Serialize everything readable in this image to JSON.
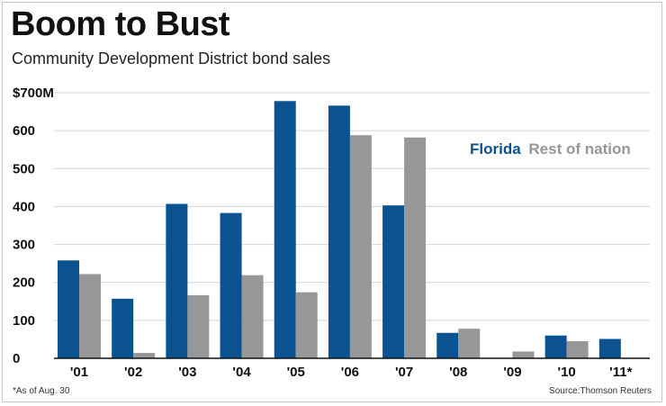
{
  "header": {
    "title": "Boom to Bust",
    "subtitle": "Community Development District bond sales"
  },
  "legend": {
    "florida": "Florida",
    "rest": "Rest of nation"
  },
  "footer": {
    "footnote": "*As of Aug. 30",
    "source": "Source:Thomson Reuters"
  },
  "colors": {
    "florida": "#0a5390",
    "rest": "#959799",
    "grid": "#d4d4d4",
    "axis": "#111111"
  },
  "chart_data": {
    "type": "bar",
    "title": "Boom to Bust",
    "subtitle": "Community Development District bond sales",
    "xlabel": "",
    "ylabel": "",
    "ylim": [
      0,
      700
    ],
    "yticks": [
      {
        "value": 0,
        "label": "0"
      },
      {
        "value": 100,
        "label": "100"
      },
      {
        "value": 200,
        "label": "200"
      },
      {
        "value": 300,
        "label": "300"
      },
      {
        "value": 400,
        "label": "400"
      },
      {
        "value": 500,
        "label": "500"
      },
      {
        "value": 600,
        "label": "600"
      },
      {
        "value": 700,
        "label": "$700M"
      }
    ],
    "categories": [
      "'01",
      "'02",
      "'03",
      "'04",
      "'05",
      "'06",
      "'07",
      "'08",
      "'09",
      "'10",
      "'11*"
    ],
    "series": [
      {
        "name": "Florida",
        "color": "#0a5390",
        "values": [
          258,
          157,
          407,
          383,
          678,
          666,
          403,
          67,
          0,
          60,
          51
        ]
      },
      {
        "name": "Rest of nation",
        "color": "#959799",
        "values": [
          222,
          14,
          166,
          219,
          174,
          588,
          582,
          78,
          18,
          45,
          0
        ]
      }
    ],
    "grid": true,
    "legend_position": "right"
  }
}
